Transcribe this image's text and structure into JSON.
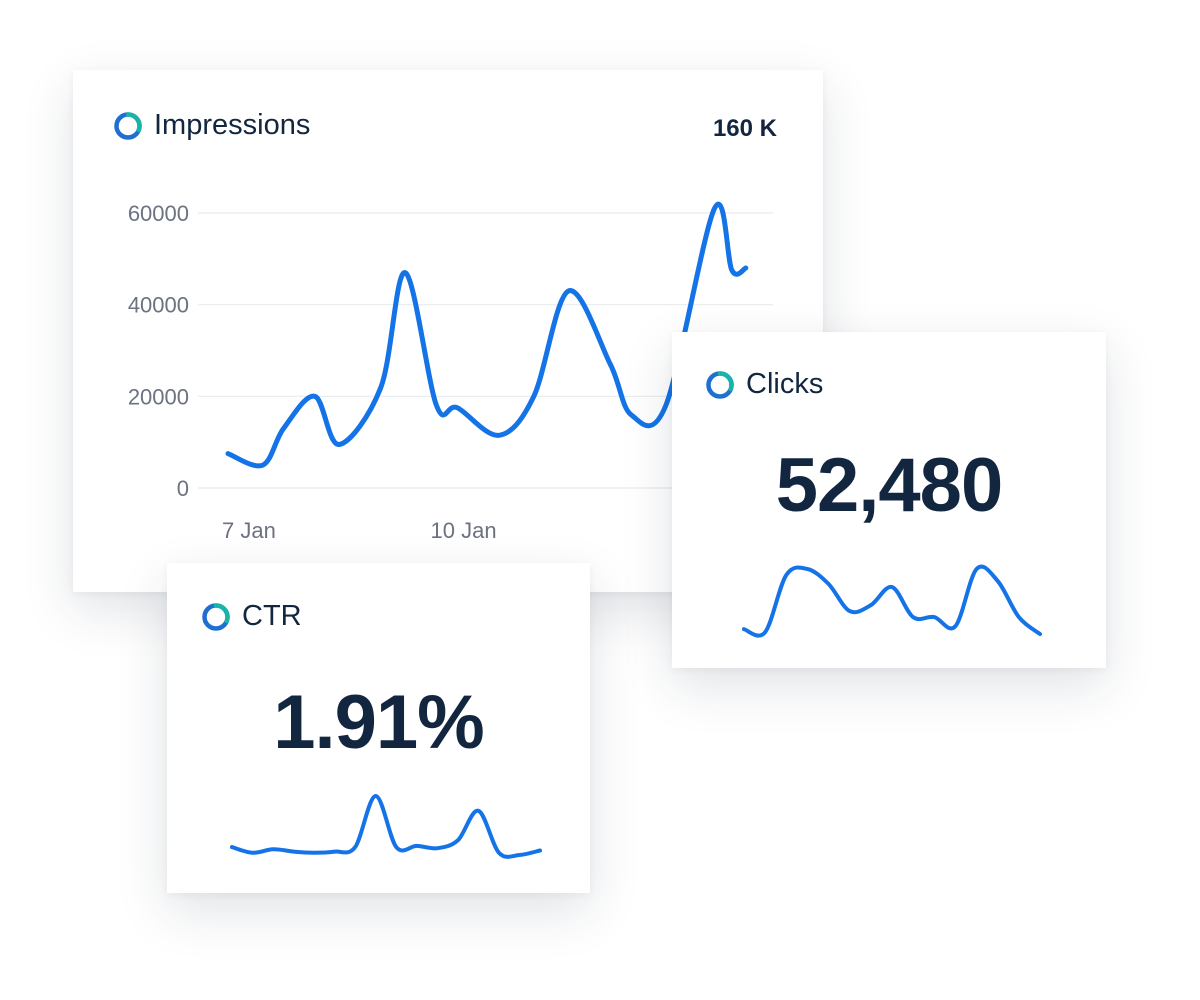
{
  "colors": {
    "line": "#1473e6",
    "text": "#13263f",
    "tick": "#6b7280",
    "grid": "#e8ebef",
    "logo_teal": "#17b5a7",
    "logo_blue": "#1f6fd1"
  },
  "logo_icon": "ring-logo-icon",
  "impressions": {
    "title": "Impressions",
    "total": "160 K"
  },
  "clicks": {
    "title": "Clicks",
    "value": "52,480"
  },
  "ctr": {
    "title": "CTR",
    "value": "1.91%"
  },
  "chart_data": [
    {
      "type": "line",
      "title": "Impressions",
      "x_tick_labels": [
        "7 Jan",
        "10 Jan"
      ],
      "y_ticks": [
        0,
        20000,
        40000,
        60000
      ],
      "ylim": [
        0,
        60000
      ],
      "grid": true,
      "series": [
        {
          "x": [
            0,
            0.5,
            0.8,
            1.25,
            1.6,
            2.2,
            2.55,
            3.0,
            3.3,
            3.9,
            4.4,
            4.9,
            5.5,
            5.8,
            6.3,
            7.0,
            7.25,
            7.45
          ],
          "y": [
            7500,
            5000,
            13000,
            20000,
            9500,
            22000,
            47000,
            18000,
            17500,
            11500,
            20000,
            43000,
            27000,
            16000,
            18000,
            61000,
            47500,
            48000
          ]
        }
      ]
    },
    {
      "type": "line",
      "title": "Clicks",
      "series": [
        {
          "y": [
            2,
            1.5,
            11,
            12,
            9.5,
            5,
            6,
            9,
            4,
            4,
            2.5,
            12,
            10,
            4,
            1.2
          ]
        }
      ]
    },
    {
      "type": "line",
      "title": "CTR",
      "series": [
        {
          "y": [
            1,
            0.5,
            0.8,
            0.6,
            0.5,
            0.6,
            1,
            5.5,
            1,
            1.1,
            0.9,
            1.6,
            4.2,
            0.5,
            0.3,
            0.7
          ]
        }
      ]
    }
  ]
}
